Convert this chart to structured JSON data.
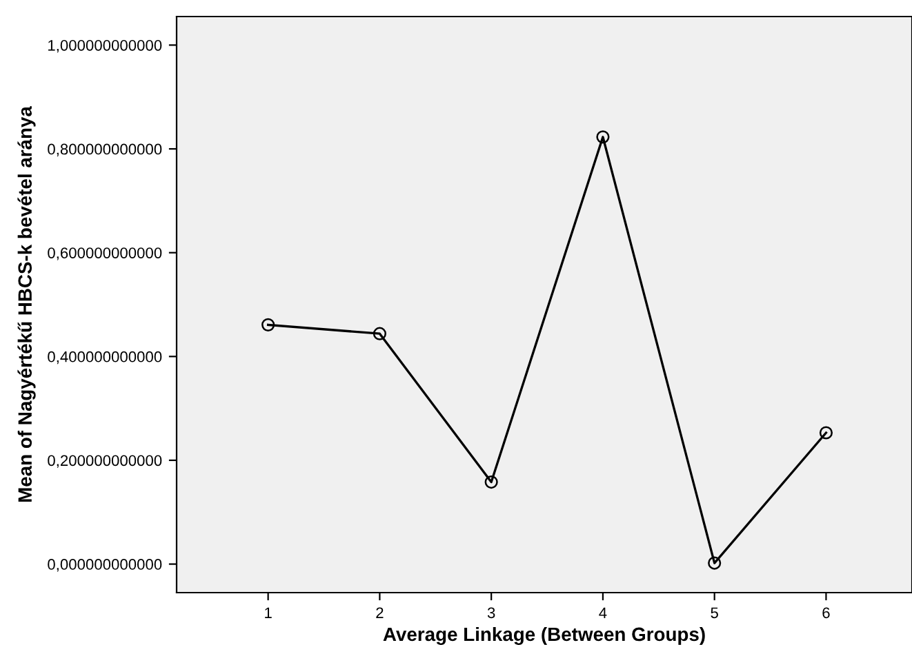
{
  "chart_data": {
    "type": "line",
    "xlabel": "Average Linkage (Between Groups)",
    "ylabel": "Mean of Nagyértékű HBCS-k bevétel aránya",
    "categories": [
      "1",
      "2",
      "3",
      "4",
      "5",
      "6"
    ],
    "series": [
      {
        "color": "#000000",
        "values": [
          0.461,
          0.444,
          0.158,
          0.823,
          0.002,
          0.253
        ]
      }
    ],
    "marker": "circle",
    "line_style": "solid",
    "grid": false,
    "legend": false,
    "ylim": [
      -0.055,
      1.055
    ],
    "yticks": [
      {
        "value": 0,
        "label": "0,000000000000"
      },
      {
        "value": 0.2,
        "label": "0,200000000000"
      },
      {
        "value": 0.4,
        "label": "0,400000000000"
      },
      {
        "value": 0.6,
        "label": "0,600000000000"
      },
      {
        "value": 0.8,
        "label": "0,800000000000"
      },
      {
        "value": 1,
        "label": "1,000000000000"
      }
    ]
  }
}
